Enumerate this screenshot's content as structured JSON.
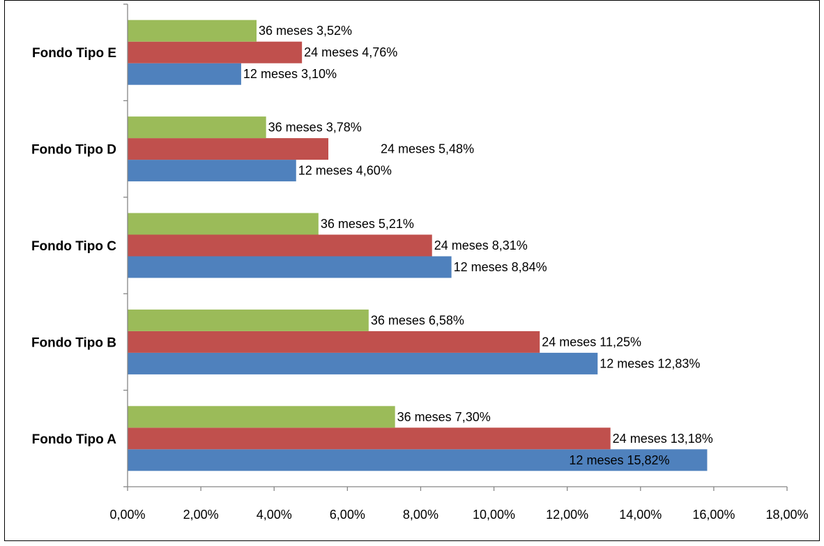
{
  "chart_data": {
    "type": "bar",
    "orientation": "horizontal",
    "categories": [
      "Fondo Tipo A",
      "Fondo Tipo B",
      "Fondo Tipo C",
      "Fondo Tipo D",
      "Fondo Tipo E"
    ],
    "series": [
      {
        "name": "12 meses",
        "color": "#4F81BD",
        "values": [
          15.82,
          12.83,
          8.84,
          4.6,
          3.1
        ],
        "labels": [
          "12  meses 15,82%",
          "12  meses 12,83%",
          "12  meses 8,84%",
          "12  meses 4,60%",
          "12  meses 3,10%"
        ]
      },
      {
        "name": "24 meses",
        "color": "#C0504D",
        "values": [
          13.18,
          11.25,
          8.31,
          5.48,
          4.76
        ],
        "labels": [
          "24  meses 13,18%",
          "24  meses 11,25%",
          "24  meses 8,31%",
          "24  meses 5,48%",
          "24  meses 4,76%"
        ]
      },
      {
        "name": "36 meses",
        "color": "#9BBB59",
        "values": [
          7.3,
          6.58,
          5.21,
          3.78,
          3.52
        ],
        "labels": [
          "36  meses 7,30%",
          "36  meses 6,58%",
          "36  meses 5,21%",
          "36  meses 3,78%",
          "36  meses 3,52%"
        ]
      }
    ],
    "xlim": [
      0,
      18
    ],
    "xticks": [
      0,
      2,
      4,
      6,
      8,
      10,
      12,
      14,
      16,
      18
    ],
    "xtick_labels": [
      "0,00%",
      "2,00%",
      "4,00%",
      "6,00%",
      "8,00%",
      "10,00%",
      "12,00%",
      "14,00%",
      "16,00%",
      "18,00%"
    ],
    "title": "",
    "xlabel": "",
    "ylabel": "",
    "grid": false,
    "legend": "none"
  }
}
